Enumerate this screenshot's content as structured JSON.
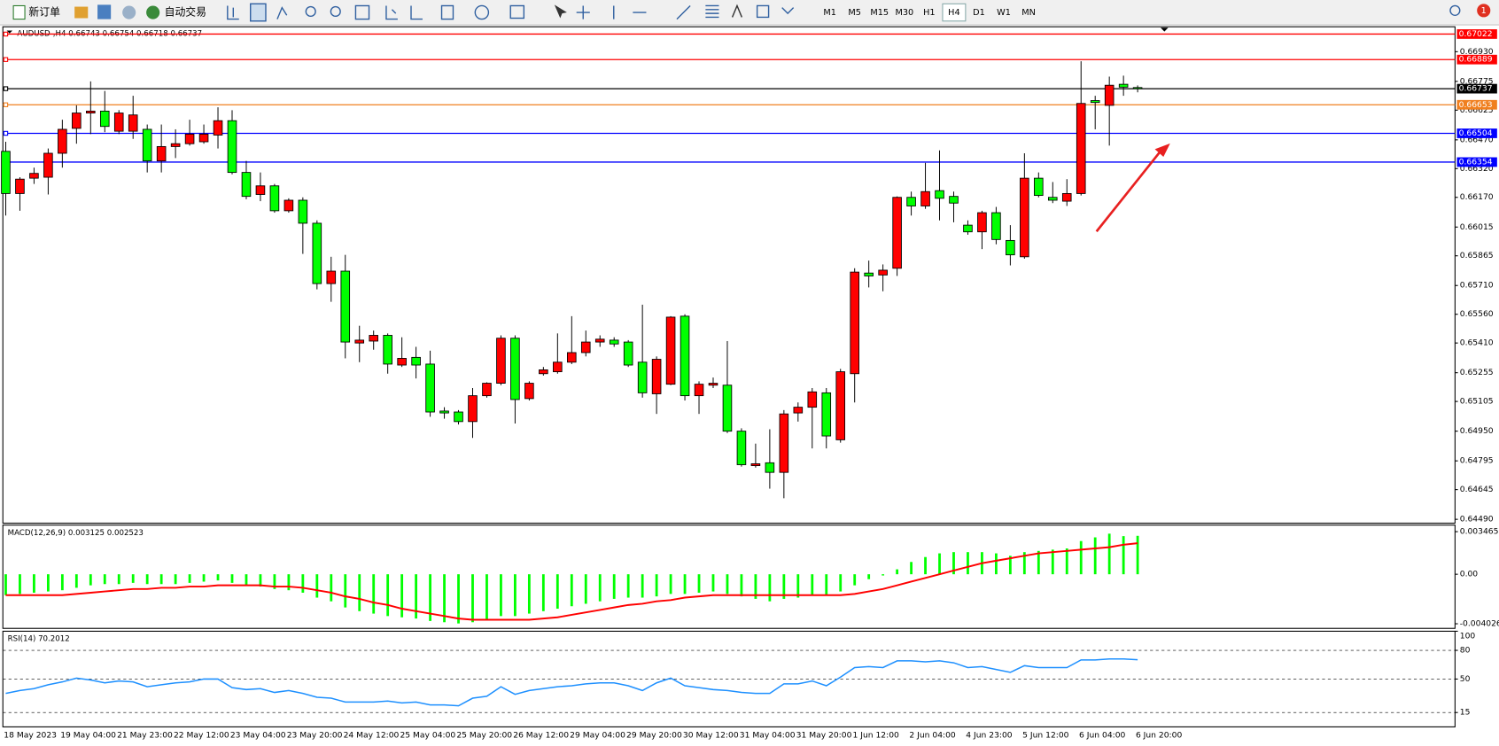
{
  "toolbar": {
    "new_order": "新订单",
    "auto_trading": "自动交易",
    "timeframes": [
      "M1",
      "M5",
      "M15",
      "M30",
      "H1",
      "H4",
      "D1",
      "W1",
      "MN"
    ],
    "active_timeframe": "H4",
    "notification_count": "1"
  },
  "chart_data": [
    {
      "type": "candlestick",
      "title": "AUDUSD-,H4  0.66743 0.66754 0.66718 0.66737",
      "categories": [
        "18 May 2023",
        null,
        null,
        null,
        "19 May 04:00",
        null,
        null,
        null,
        "21 May 23:00",
        null,
        null,
        null,
        "22 May 12:00",
        null,
        null,
        null,
        "23 May 04:00",
        null,
        null,
        null,
        "23 May 20:00",
        null,
        null,
        null,
        "24 May 12:00",
        null,
        null,
        null,
        "25 May 04:00",
        null,
        null,
        null,
        "25 May 20:00",
        null,
        null,
        null,
        "26 May 12:00",
        null,
        null,
        null,
        "29 May 04:00",
        null,
        null,
        null,
        "29 May 20:00",
        null,
        null,
        null,
        "30 May 12:00",
        null,
        null,
        null,
        "31 May 04:00",
        null,
        null,
        null,
        "31 May 20:00",
        null,
        null,
        null,
        "1 Jun 12:00",
        null,
        null,
        null,
        "2 Jun 04:00",
        null,
        null,
        null,
        "4 Jun 23:00",
        null,
        null,
        null,
        "5 Jun 12:00",
        null,
        null,
        null,
        "6 Jun 04:00",
        null,
        null,
        null,
        "6 Jun 20:00"
      ],
      "open": [
        0.6641,
        0.6619,
        0.6627,
        0.66275,
        0.664,
        0.6653,
        0.6661,
        0.6662,
        0.66515,
        0.66515,
        0.66525,
        0.6636,
        0.66435,
        0.6645,
        0.6646,
        0.66495,
        0.6657,
        0.663,
        0.66185,
        0.6623,
        0.661,
        0.66155,
        0.66035,
        0.6572,
        0.65785,
        0.6541,
        0.6542,
        0.6545,
        0.65295,
        0.65335,
        0.653,
        0.65055,
        0.6505,
        0.65,
        0.65135,
        0.652,
        0.65435,
        0.6512,
        0.6525,
        0.6526,
        0.6531,
        0.6536,
        0.65415,
        0.65425,
        0.65415,
        0.6531,
        0.65145,
        0.65195,
        0.6555,
        0.65135,
        0.6519,
        0.6519,
        0.6495,
        0.6477,
        0.64785,
        0.64735,
        0.65045,
        0.65075,
        0.6515,
        0.64905,
        0.6525,
        0.65775,
        0.65765,
        0.658,
        0.6617,
        0.66125,
        0.66205,
        0.66175,
        0.66025,
        0.6599,
        0.6609,
        0.65945,
        0.6586,
        0.6627,
        0.6617,
        0.6615,
        0.6619,
        0.66675,
        0.6665,
        0.6676,
        0.66743
      ],
      "high": [
        0.6646,
        0.66275,
        0.66325,
        0.66425,
        0.66575,
        0.6665,
        0.66775,
        0.66725,
        0.66625,
        0.667,
        0.6655,
        0.6655,
        0.66525,
        0.66575,
        0.6655,
        0.6664,
        0.66625,
        0.6636,
        0.663,
        0.6624,
        0.66165,
        0.6617,
        0.6605,
        0.6586,
        0.6587,
        0.655,
        0.65475,
        0.6546,
        0.6544,
        0.6539,
        0.6537,
        0.65075,
        0.6506,
        0.65175,
        0.65205,
        0.6545,
        0.6545,
        0.6521,
        0.65285,
        0.6546,
        0.6555,
        0.65475,
        0.6545,
        0.6544,
        0.65425,
        0.6561,
        0.6534,
        0.6555,
        0.6556,
        0.6521,
        0.6523,
        0.6542,
        0.64965,
        0.64885,
        0.6496,
        0.6506,
        0.651,
        0.65175,
        0.65175,
        0.65275,
        0.658,
        0.6584,
        0.6582,
        0.66175,
        0.662,
        0.6635,
        0.66415,
        0.662,
        0.6605,
        0.661,
        0.6612,
        0.66025,
        0.664,
        0.663,
        0.6625,
        0.66265,
        0.6688,
        0.667,
        0.668,
        0.66805,
        0.66754
      ],
      "low": [
        0.66075,
        0.661,
        0.6624,
        0.66185,
        0.66325,
        0.6645,
        0.665,
        0.6651,
        0.665,
        0.66475,
        0.663,
        0.663,
        0.66375,
        0.6644,
        0.6645,
        0.66425,
        0.6629,
        0.6616,
        0.6615,
        0.6609,
        0.6609,
        0.65875,
        0.6569,
        0.65625,
        0.6533,
        0.6531,
        0.65375,
        0.6525,
        0.65285,
        0.65225,
        0.65025,
        0.65015,
        0.64985,
        0.64915,
        0.65125,
        0.6519,
        0.6499,
        0.6511,
        0.6524,
        0.6525,
        0.653,
        0.6534,
        0.6539,
        0.6539,
        0.65285,
        0.65125,
        0.6504,
        0.6519,
        0.6511,
        0.6504,
        0.65175,
        0.6494,
        0.64765,
        0.6476,
        0.6465,
        0.646,
        0.65,
        0.6486,
        0.6486,
        0.6489,
        0.651,
        0.657,
        0.6568,
        0.6576,
        0.66075,
        0.6611,
        0.6605,
        0.6604,
        0.65975,
        0.659,
        0.65925,
        0.65815,
        0.6585,
        0.6617,
        0.6614,
        0.66125,
        0.6618,
        0.66525,
        0.6644,
        0.667,
        0.66718
      ],
      "close": [
        0.6619,
        0.66265,
        0.66295,
        0.664,
        0.66525,
        0.6661,
        0.6662,
        0.6654,
        0.6661,
        0.666,
        0.6636,
        0.66435,
        0.6645,
        0.665,
        0.665,
        0.6657,
        0.663,
        0.66175,
        0.6623,
        0.661,
        0.66155,
        0.66035,
        0.6572,
        0.65785,
        0.65415,
        0.65425,
        0.6545,
        0.653,
        0.6533,
        0.65295,
        0.6505,
        0.65045,
        0.65,
        0.65135,
        0.652,
        0.65435,
        0.65115,
        0.652,
        0.6527,
        0.6531,
        0.6536,
        0.65415,
        0.6543,
        0.65405,
        0.65295,
        0.6515,
        0.65325,
        0.65545,
        0.65135,
        0.65195,
        0.652,
        0.6495,
        0.64775,
        0.6478,
        0.64735,
        0.6504,
        0.65075,
        0.65155,
        0.64925,
        0.6526,
        0.6578,
        0.6576,
        0.6579,
        0.6617,
        0.66125,
        0.662,
        0.66165,
        0.6614,
        0.6599,
        0.6609,
        0.6595,
        0.6587,
        0.6627,
        0.6618,
        0.66155,
        0.6619,
        0.6666,
        0.66665,
        0.66755,
        0.66745,
        0.66737
      ],
      "up_color": "#ff0000",
      "down_color": "#00ff00",
      "ylim": [
        0.6447,
        0.6706
      ],
      "yticks": [
        {
          "value": 0.6693,
          "label": "0.66930"
        },
        0.66775,
        0.66625,
        {
          "value": 0.6647,
          "label": "0.66470"
        },
        {
          "value": 0.6632,
          "label": "0.66320"
        },
        {
          "value": 0.6617,
          "label": "0.66170"
        },
        0.66015,
        0.65865,
        {
          "value": 0.6571,
          "label": "0.65710"
        },
        {
          "value": 0.6556,
          "label": "0.65560"
        },
        {
          "value": 0.6541,
          "label": "0.65410"
        },
        0.65255,
        0.65105,
        {
          "value": 0.6495,
          "label": "0.64950"
        },
        0.64795,
        0.64645,
        {
          "value": 0.6449,
          "label": "0.64490"
        }
      ],
      "hlines": [
        {
          "value": 0.67022,
          "color": "#ff0000"
        },
        {
          "value": 0.66889,
          "color": "#ff0000"
        },
        {
          "value": 0.66737,
          "color": "#000000"
        },
        {
          "value": 0.66653,
          "color": "#f07f1e"
        },
        {
          "value": 0.66504,
          "color": "#0000ff"
        },
        {
          "value": 0.66354,
          "color": "#0000ff"
        }
      ]
    },
    {
      "type": "macd",
      "title": "MACD(12,26,9) 0.003125 0.002523",
      "histogram": {
        "color": "#00ff00",
        "values": [
          -0.0017,
          -0.0016,
          -0.0015,
          -0.0014,
          -0.0013,
          -0.0011,
          -0.0009,
          -0.0008,
          -0.0008,
          -0.0007,
          -0.0008,
          -0.0008,
          -0.0008,
          -0.0007,
          -0.0006,
          -0.0005,
          -0.0007,
          -0.0009,
          -0.001,
          -0.0012,
          -0.0013,
          -0.0015,
          -0.0019,
          -0.0022,
          -0.0027,
          -0.003,
          -0.0032,
          -0.0034,
          -0.0035,
          -0.0036,
          -0.0038,
          -0.0039,
          -0.004,
          -0.0039,
          -0.0037,
          -0.0034,
          -0.0034,
          -0.0032,
          -0.003,
          -0.0028,
          -0.0026,
          -0.0024,
          -0.0022,
          -0.002,
          -0.0019,
          -0.0019,
          -0.0018,
          -0.0016,
          -0.0016,
          -0.0015,
          -0.0014,
          -0.0016,
          -0.0018,
          -0.002,
          -0.0022,
          -0.002,
          -0.0019,
          -0.0017,
          -0.0017,
          -0.0014,
          -0.0009,
          -0.0004,
          -0.0001,
          0.0004,
          0.001,
          0.0014,
          0.0017,
          0.0018,
          0.0018,
          0.0018,
          0.0017,
          0.0015,
          0.0018,
          0.0019,
          0.002,
          0.0021,
          0.0027,
          0.003,
          0.0033,
          0.0031,
          0.003125
        ]
      },
      "signal": {
        "color": "#ff0000",
        "values": [
          -0.0017,
          -0.0017,
          -0.0017,
          -0.0017,
          -0.0017,
          -0.0016,
          -0.0015,
          -0.0014,
          -0.0013,
          -0.0012,
          -0.0012,
          -0.0011,
          -0.0011,
          -0.001,
          -0.001,
          -0.0009,
          -0.0009,
          -0.0009,
          -0.0009,
          -0.001,
          -0.001,
          -0.0011,
          -0.0013,
          -0.0015,
          -0.0018,
          -0.002,
          -0.0023,
          -0.0025,
          -0.0028,
          -0.003,
          -0.0032,
          -0.0034,
          -0.0036,
          -0.0037,
          -0.0037,
          -0.0037,
          -0.0037,
          -0.0037,
          -0.0036,
          -0.0035,
          -0.0033,
          -0.0031,
          -0.0029,
          -0.0027,
          -0.0025,
          -0.0024,
          -0.0022,
          -0.0021,
          -0.0019,
          -0.0018,
          -0.0017,
          -0.0017,
          -0.0017,
          -0.0017,
          -0.0017,
          -0.0017,
          -0.0017,
          -0.0017,
          -0.0017,
          -0.0017,
          -0.0016,
          -0.0014,
          -0.0012,
          -0.0009,
          -0.0006,
          -0.0003,
          0,
          0.0003,
          0.0006,
          0.0009,
          0.0011,
          0.0013,
          0.0015,
          0.0017,
          0.0018,
          0.0019,
          0.002,
          0.0021,
          0.0022,
          0.0024,
          0.002523
        ]
      },
      "ylim": [
        -0.0044,
        0.004
      ],
      "yticks": [
        0.003465,
        {
          "value": 0,
          "label": "0.00"
        },
        -0.004026
      ]
    },
    {
      "type": "line",
      "title": "RSI(14) 70.2012",
      "color": "#1e90ff",
      "values": [
        35,
        38,
        40,
        44,
        47,
        51,
        49,
        46,
        48,
        47,
        42,
        44,
        46,
        47,
        50,
        50,
        41,
        39,
        40,
        36,
        38,
        35,
        31,
        30,
        26,
        26,
        26,
        27,
        25,
        26,
        23,
        23,
        22,
        30,
        32,
        42,
        34,
        38,
        40,
        42,
        43,
        45,
        46,
        46,
        43,
        38,
        46,
        51,
        43,
        41,
        39,
        38,
        36,
        35,
        35,
        45,
        45,
        48,
        43,
        52,
        62,
        63,
        62,
        69,
        69,
        68,
        69,
        67,
        62,
        63,
        60,
        57,
        64,
        62,
        62,
        62,
        70,
        70,
        71,
        71,
        70.2012
      ],
      "ylim": [
        0,
        100
      ],
      "yticks": [
        100,
        80,
        50,
        15
      ],
      "grid": true
    }
  ]
}
